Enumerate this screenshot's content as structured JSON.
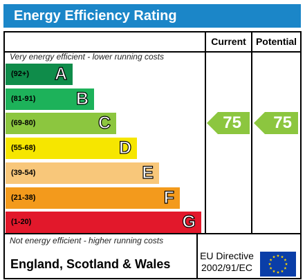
{
  "title": "Energy Efficiency Rating",
  "columns": {
    "current": "Current",
    "potential": "Potential"
  },
  "top_note": "Very energy efficient - lower running costs",
  "bottom_note": "Not energy efficient - higher running costs",
  "bands": [
    {
      "range": "(92+)",
      "letter": "A",
      "color": "#0f8c4a"
    },
    {
      "range": "(81-91)",
      "letter": "B",
      "color": "#1db25a"
    },
    {
      "range": "(69-80)",
      "letter": "C",
      "color": "#8cc63f"
    },
    {
      "range": "(55-68)",
      "letter": "D",
      "color": "#f6e600"
    },
    {
      "range": "(39-54)",
      "letter": "E",
      "color": "#f8c77a"
    },
    {
      "range": "(21-38)",
      "letter": "F",
      "color": "#f39a1c"
    },
    {
      "range": "(1-20)",
      "letter": "G",
      "color": "#e2182b"
    }
  ],
  "current": {
    "value": "75",
    "band": "C",
    "color": "#8cc63f"
  },
  "potential": {
    "value": "75",
    "band": "C",
    "color": "#8cc63f"
  },
  "footer": {
    "country": "England, Scotland & Wales",
    "eu_line1": "EU Directive",
    "eu_line2": "2002/91/EC",
    "flag_color": "#0a3ea8",
    "star_color": "#ffd700"
  }
}
